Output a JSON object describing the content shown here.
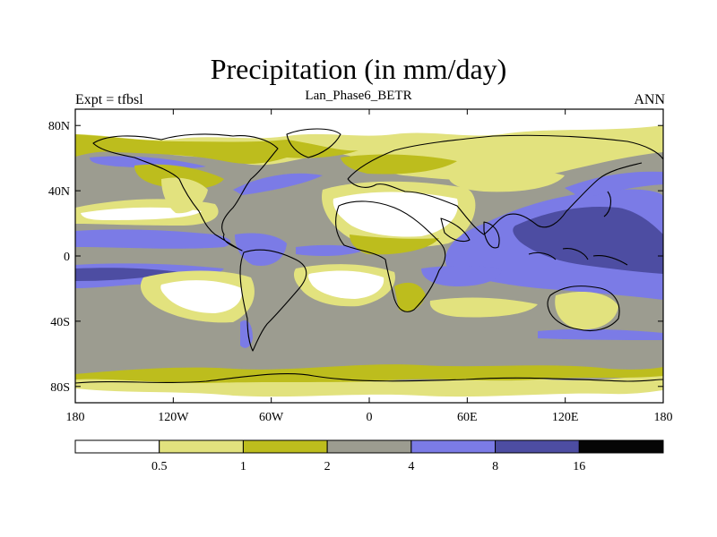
{
  "title": "Precipitation (in mm/day)",
  "subtitle": "Lan_Phase6_BETR",
  "left_string": "Expt = tfbsl",
  "right_string": "ANN",
  "map": {
    "projection": "cylindrical-equidistant",
    "lon_range": [
      -180,
      180
    ],
    "lat_range": [
      -90,
      90
    ],
    "lat_ticks": [
      {
        "value": 80,
        "label": "80N"
      },
      {
        "value": 40,
        "label": "40N"
      },
      {
        "value": 0,
        "label": "0"
      },
      {
        "value": -40,
        "label": "40S"
      },
      {
        "value": -80,
        "label": "80S"
      }
    ],
    "lon_ticks": [
      {
        "value": -180,
        "label": "180"
      },
      {
        "value": -120,
        "label": "120W"
      },
      {
        "value": -60,
        "label": "60W"
      },
      {
        "value": 0,
        "label": "0"
      },
      {
        "value": 60,
        "label": "60E"
      },
      {
        "value": 120,
        "label": "120E"
      },
      {
        "value": 180,
        "label": "180"
      }
    ]
  },
  "colorbar": {
    "boundaries": [
      "0.5",
      "1",
      "2",
      "4",
      "8",
      "16"
    ],
    "colors": [
      "#ffffff",
      "#e2e27e",
      "#bdbd1d",
      "#9c9c90",
      "#7b7be6",
      "#4d4da2",
      "#050505"
    ]
  }
}
